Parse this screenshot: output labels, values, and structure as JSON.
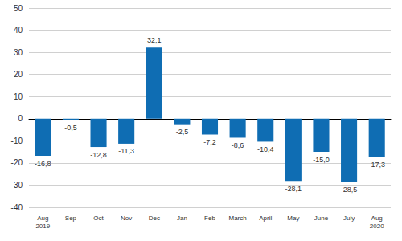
{
  "chart_data": {
    "type": "bar",
    "categories": [
      "Aug\n2019",
      "Sep",
      "Oct",
      "Nov",
      "Dec",
      "Jan",
      "Feb",
      "March",
      "April",
      "May",
      "June",
      "July",
      "Aug\n2020"
    ],
    "values": [
      -16.8,
      -0.5,
      -12.8,
      -11.3,
      32.1,
      -2.5,
      -7.2,
      -8.6,
      -10.4,
      -28.1,
      -15.0,
      -28.5,
      -17.3
    ],
    "value_labels": [
      "-16,8",
      "-0,5",
      "-12,8",
      "-11,3",
      "32,1",
      "-2,5",
      "-7,2",
      "-8,6",
      "-10,4",
      "-28,1",
      "-15,0",
      "-28,5",
      "-17,3"
    ],
    "color": "#0f6db3",
    "ylim": [
      -40,
      50
    ],
    "yticks": [
      -40,
      -30,
      -20,
      -10,
      0,
      10,
      20,
      30,
      40,
      50
    ],
    "grid": true,
    "data_labels": true
  }
}
